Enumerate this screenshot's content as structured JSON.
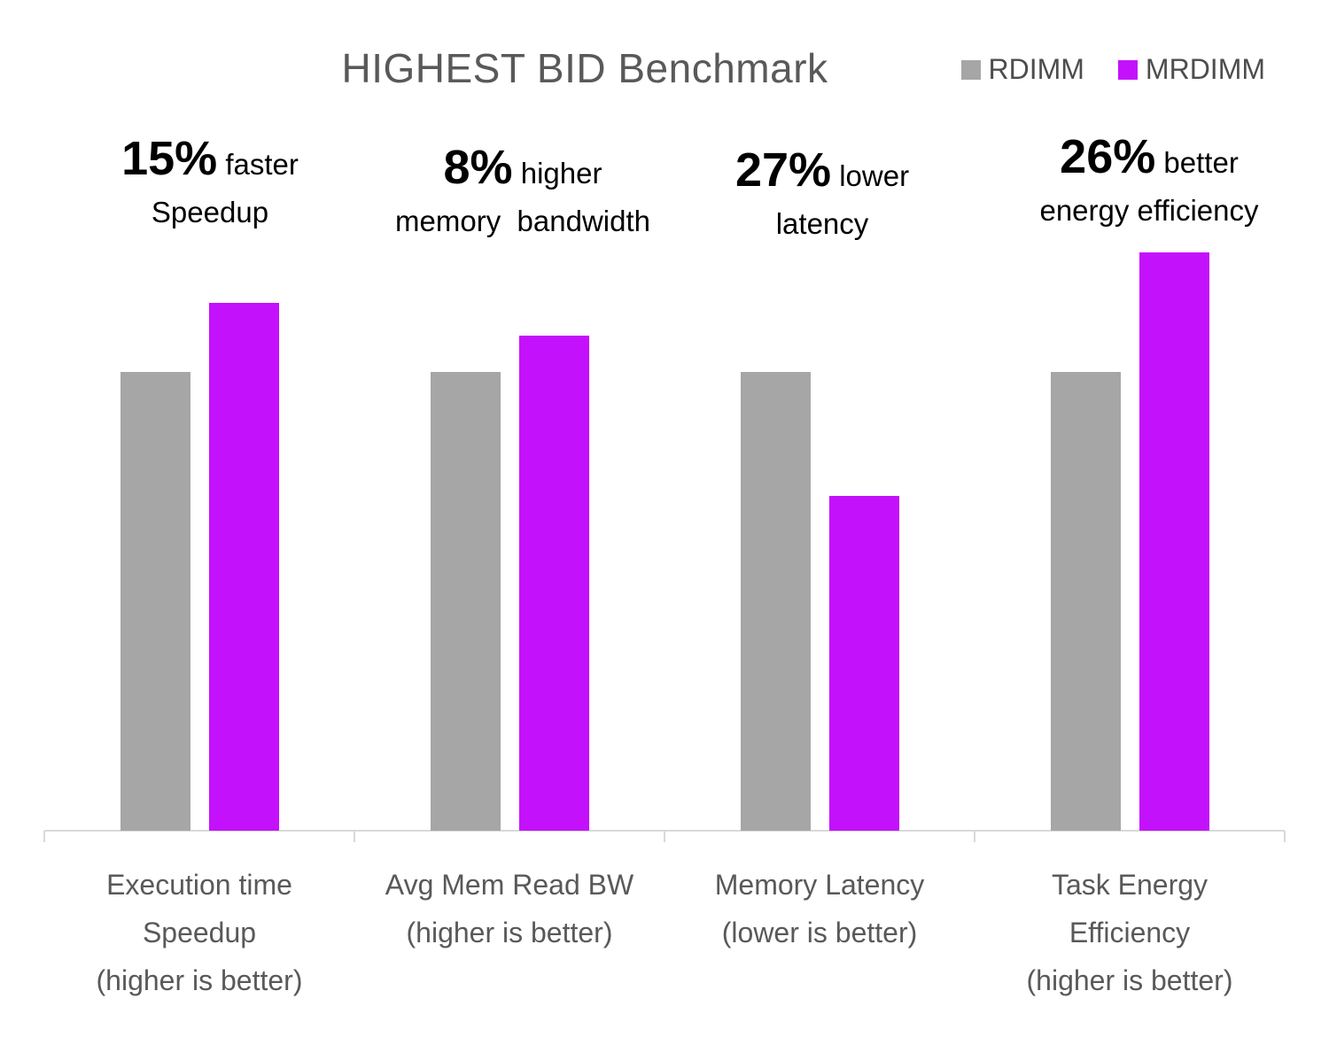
{
  "chart_data": {
    "type": "bar",
    "title": "HIGHEST BID Benchmark",
    "legend_position": "top-right",
    "grid": false,
    "xlabel": "",
    "ylabel": "",
    "ylim": [
      0,
      1.3
    ],
    "value_note": "no numeric axis shown; bar heights normalized to RDIMM = 1.0",
    "series": [
      {
        "name": "RDIMM",
        "color": "#A6A6A6",
        "values": [
          1.0,
          1.0,
          1.0,
          1.0
        ]
      },
      {
        "name": "MRDIMM",
        "color": "#C411FB",
        "values": [
          1.15,
          1.08,
          0.73,
          1.26
        ]
      }
    ],
    "categories": [
      {
        "axis_label_lines": [
          "Execution time",
          "Speedup",
          "(higher is better)"
        ],
        "callout": {
          "value": "15%",
          "qualifier": "faster",
          "detail": "Speedup"
        }
      },
      {
        "axis_label_lines": [
          "Avg Mem Read BW",
          "(higher is better)"
        ],
        "callout": {
          "value": "8%",
          "qualifier": "higher",
          "detail": "memory  bandwidth"
        }
      },
      {
        "axis_label_lines": [
          "Memory Latency",
          "(lower is better)"
        ],
        "callout": {
          "value": "27%",
          "qualifier": "lower",
          "detail": "latency"
        }
      },
      {
        "axis_label_lines": [
          "Task Energy",
          "Efficiency",
          "(higher is better)"
        ],
        "callout": {
          "value": "26%",
          "qualifier": "better",
          "detail": "energy efficiency"
        }
      }
    ]
  }
}
